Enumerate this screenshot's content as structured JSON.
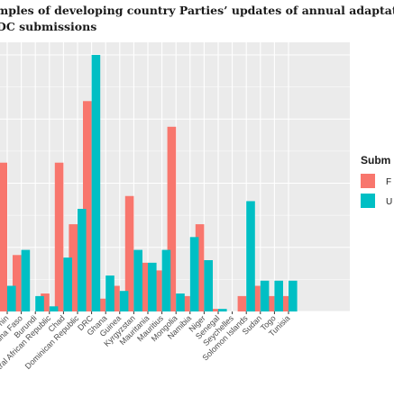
{
  "figure": {
    "title_line_1": "mples of developing country Parties’ updates of annual adaptatic",
    "title_line_2": "DC submissions"
  },
  "chart_data": {
    "type": "bar",
    "categories": [
      "Benin",
      "Burkina Faso",
      "Burundi",
      "Central African Republic",
      "Chad",
      "Dominican Republic",
      "DRC",
      "Ghana",
      "Guinea",
      "Kyrgyzstan",
      "Mauritania",
      "Mauritius",
      "Mongolia",
      "Namibia",
      "Niger",
      "Senegal",
      "Seychelles",
      "Solomon Islands",
      "Sudan",
      "Togo",
      "Tunisia"
    ],
    "category_labels": [
      "nin",
      "rkina Faso",
      "Burundi",
      "ntral African Republic",
      "Chad",
      "Dominican Republic",
      "DRC",
      "Ghana",
      "Guinea",
      "Kyrgyzstan",
      "Mauritania",
      "Mauritius",
      "Mongolia",
      "Namibia",
      "Niger",
      "Senegal",
      "Seychelles",
      "Solomon Islands",
      "Sudan",
      "Togo",
      "Tunisia"
    ],
    "series": [
      {
        "color": "#F8766D",
        "values": [
          58,
          22,
          0,
          7,
          58,
          34,
          82,
          5,
          10,
          45,
          19,
          16,
          72,
          6,
          34,
          1,
          0,
          6,
          10,
          6,
          6
        ]
      },
      {
        "color": "#00BFC4",
        "values": [
          10,
          24,
          6,
          2,
          21,
          40,
          100,
          14,
          8,
          24,
          19,
          24,
          7,
          29,
          20,
          1,
          0,
          43,
          12,
          12,
          12
        ]
      }
    ],
    "ylim": [
      0,
      100
    ],
    "legend": {
      "title": "Subm",
      "labels": [
        "F",
        "U"
      ],
      "placement": "right"
    },
    "grid": true,
    "background": "#EBEBEB",
    "gridline_color": "#FFFFFF"
  }
}
